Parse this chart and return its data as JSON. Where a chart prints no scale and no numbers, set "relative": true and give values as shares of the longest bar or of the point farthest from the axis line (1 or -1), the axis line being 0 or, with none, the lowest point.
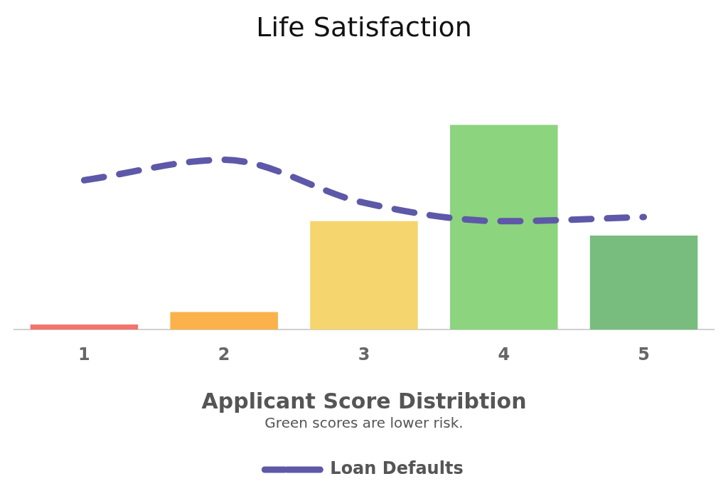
{
  "chart_data": {
    "type": "bar",
    "title": "Life Satisfaction",
    "xlabel": "Applicant Score Distribtion",
    "annotations": [
      "Green scores are lower risk."
    ],
    "categories": [
      "1",
      "2",
      "3",
      "4",
      "5"
    ],
    "relative": true,
    "legend": "bottom",
    "series": [
      {
        "colors": [
          "#f4736b",
          "#fbb24a",
          "#f5d56e",
          "#8cd47e",
          "#78bd7e"
        ],
        "values": [
          0.025,
          0.086,
          0.53,
          1,
          0.46
        ]
      },
      {
        "type": "line",
        "name": "Loan Defaults",
        "color": "#5e58a8",
        "line_style": "dashed",
        "values": [
          0.73,
          0.83,
          0.62,
          0.53,
          0.55
        ]
      }
    ]
  }
}
